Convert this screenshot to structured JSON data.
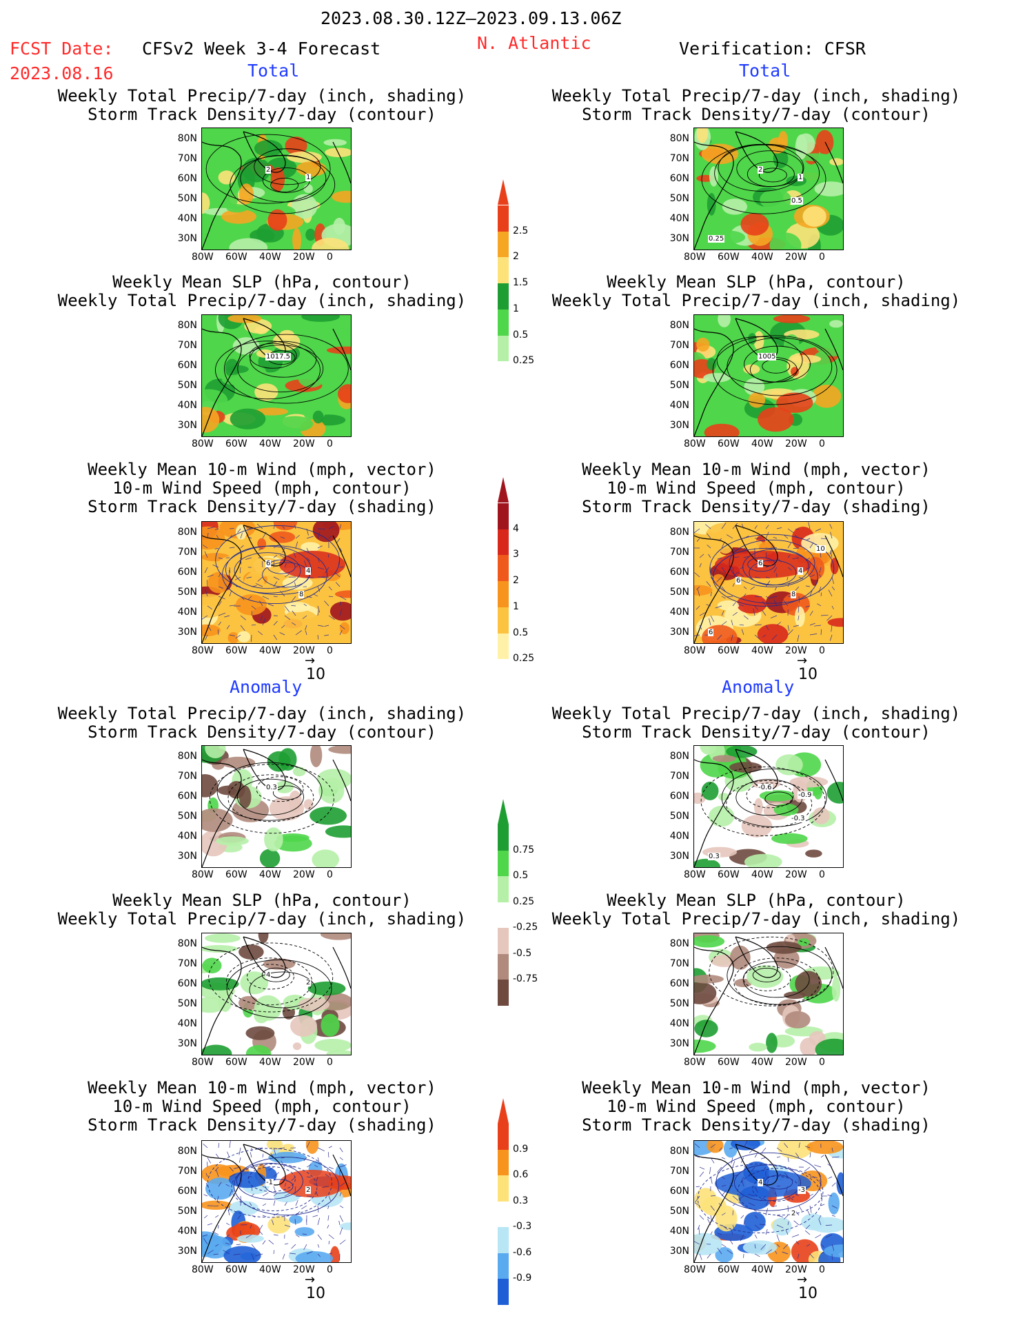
{
  "header": {
    "period": "2023.08.30.12Z–2023.09.13.06Z",
    "fcst_date_label": "FCST Date:",
    "fcst_date": "2023.08.16",
    "model": "CFSv2 Week 3-4 Forecast",
    "region": "N. Atlantic",
    "verification": "Verification: CFSR"
  },
  "section_labels": {
    "total": "Total",
    "anomaly": "Anomaly"
  },
  "panel_titles": {
    "precip_track": [
      "Weekly Total Precip/7-day (inch, shading)",
      "Storm Track Density/7-day (contour)"
    ],
    "slp_precip": [
      "Weekly Mean SLP (hPa, contour)",
      "Weekly Total Precip/7-day (inch, shading)"
    ],
    "wind_track": [
      "Weekly Mean 10-m Wind (mph, vector)",
      "10-m Wind Speed (mph, contour)",
      "Storm Track Density/7-day (shading)"
    ]
  },
  "axes": {
    "lat_labels": [
      "80N",
      "70N",
      "60N",
      "50N",
      "40N",
      "30N"
    ],
    "lon_labels": [
      "80W",
      "60W",
      "40W",
      "20W",
      "0"
    ]
  },
  "vector_ref": "10",
  "colorbars": {
    "precip_total": {
      "labels": [
        "2.5",
        "2",
        "1.5",
        "1",
        "0.5",
        "0.25"
      ],
      "colors": [
        "#e8401a",
        "#f5a623",
        "#fde27a",
        "#1e9e32",
        "#4fd64a",
        "#b6f0a8"
      ]
    },
    "track_total": {
      "labels": [
        "4",
        "3",
        "2",
        "1",
        "0.5",
        "0.25"
      ],
      "colors": [
        "#a0141e",
        "#d8281c",
        "#ef5a1c",
        "#f7941d",
        "#fcc341",
        "#fff2a8"
      ]
    },
    "precip_anom": {
      "labels": [
        "0.75",
        "0.5",
        "0.25",
        "-0.25",
        "-0.5",
        "-0.75"
      ],
      "colors": [
        "#1e9e32",
        "#4fd64a",
        "#b6f0a8",
        "#ffffff",
        "#e6c7bd",
        "#b08a7c",
        "#6e4a3f"
      ]
    },
    "track_anom": {
      "labels": [
        "0.9",
        "0.6",
        "0.3",
        "-0.3",
        "-0.6",
        "-0.9"
      ],
      "colors": [
        "#e8401a",
        "#f7941d",
        "#fde27a",
        "#ffffff",
        "#b8e6f5",
        "#5aaaf0",
        "#1f5fd6"
      ]
    }
  },
  "contour_labels": {
    "fc_precip_track": [
      "2",
      "1"
    ],
    "ver_precip_track": [
      "2",
      "1",
      "0.5",
      "0.25"
    ],
    "fc_slp": [
      "1017.5"
    ],
    "ver_slp": [
      "1005"
    ],
    "fc_wind": [
      "6",
      "4",
      "8"
    ],
    "ver_wind": [
      "6",
      "4",
      "8",
      "6",
      "10",
      "6"
    ],
    "fc_anom_precip_track": [
      "0.3"
    ],
    "ver_anom_precip_track": [
      "-0.6",
      "-0.9",
      "-0.3",
      "0.3"
    ],
    "fc_anom_slp": [
      "4",
      "2"
    ],
    "fc_anom_wind": [
      "-1",
      "2"
    ],
    "ver_anom_wind": [
      "4",
      "-3",
      "2"
    ]
  }
}
